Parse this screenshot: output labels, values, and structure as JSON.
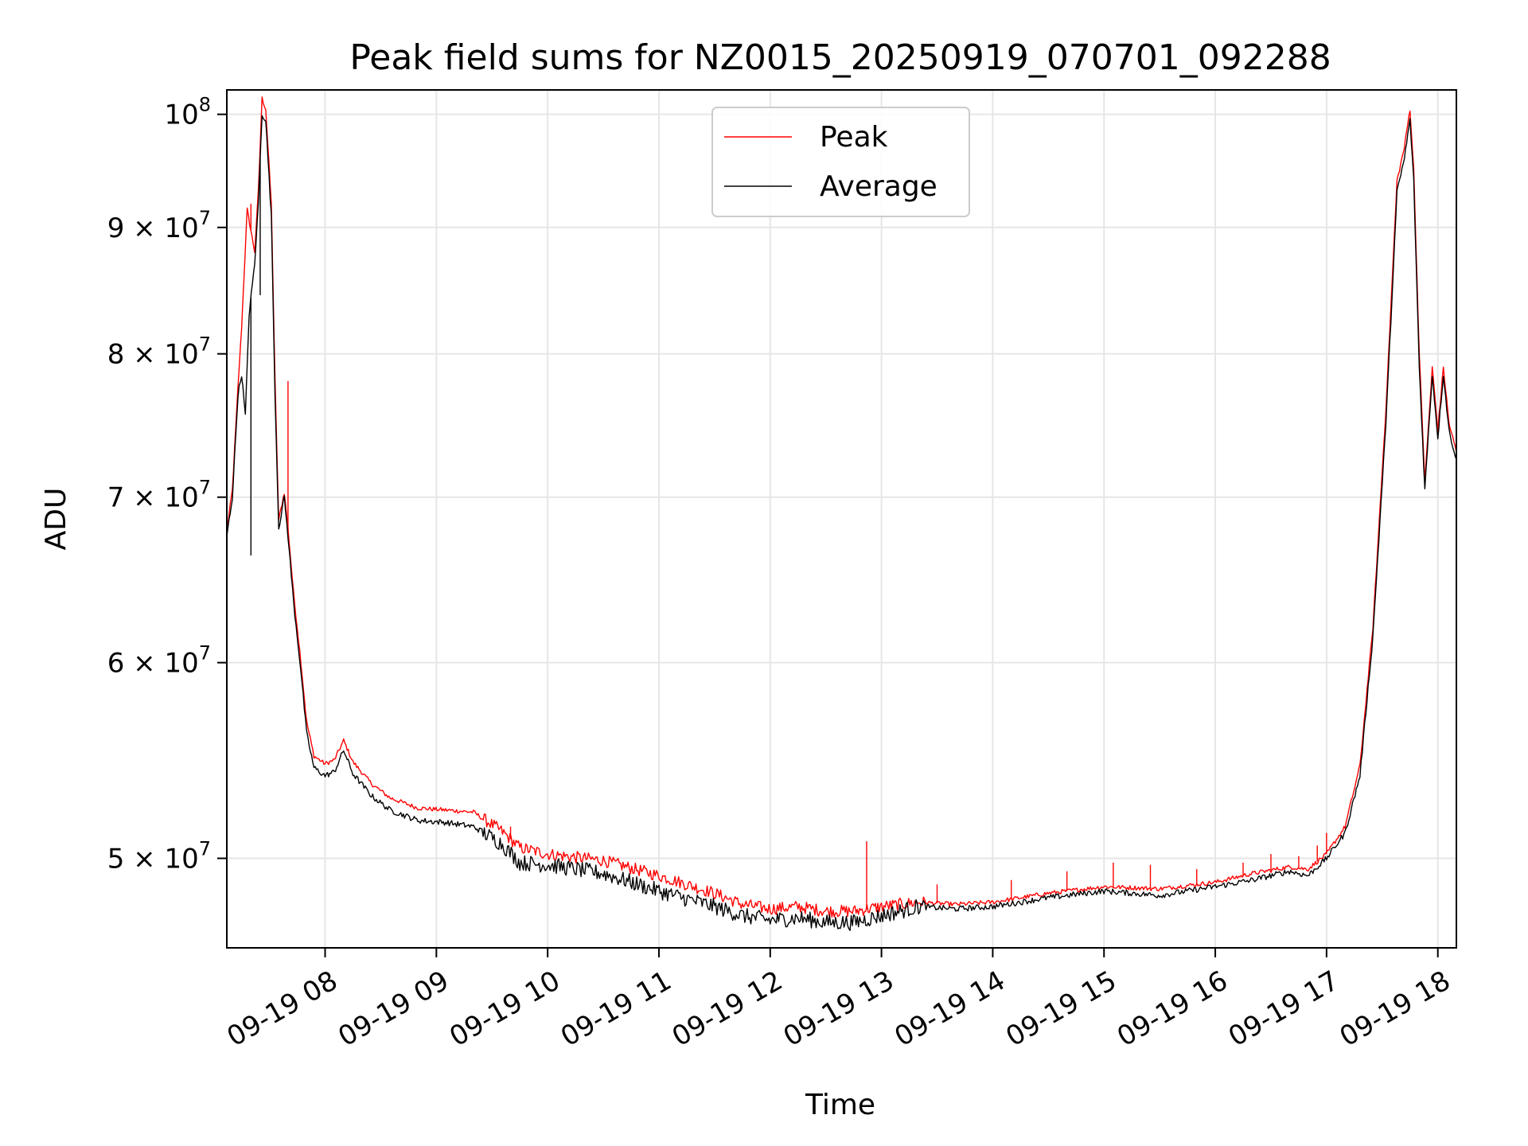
{
  "chart_data": {
    "type": "line",
    "title": "Peak field sums for NZ0015_20250919_070701_092288",
    "xlabel": "Time",
    "ylabel": "ADU",
    "y_scale": "log",
    "ylim": [
      46000000,
      102300000
    ],
    "xlim": [
      "2025-09-19 07:07",
      "2025-09-19 18:10"
    ],
    "x_ticks": [
      {
        "value": "2025-09-19 08:00",
        "label": "09-19 08"
      },
      {
        "value": "2025-09-19 09:00",
        "label": "09-19 09"
      },
      {
        "value": "2025-09-19 10:00",
        "label": "09-19 10"
      },
      {
        "value": "2025-09-19 11:00",
        "label": "09-19 11"
      },
      {
        "value": "2025-09-19 12:00",
        "label": "09-19 12"
      },
      {
        "value": "2025-09-19 13:00",
        "label": "09-19 13"
      },
      {
        "value": "2025-09-19 14:00",
        "label": "09-19 14"
      },
      {
        "value": "2025-09-19 15:00",
        "label": "09-19 15"
      },
      {
        "value": "2025-09-19 16:00",
        "label": "09-19 16"
      },
      {
        "value": "2025-09-19 17:00",
        "label": "09-19 17"
      },
      {
        "value": "2025-09-19 18:00",
        "label": "09-19 18"
      }
    ],
    "y_ticks": [
      {
        "value": 100000000,
        "base": "10",
        "exp": "8"
      },
      {
        "value": 90000000,
        "base": "9 × 10",
        "exp": "7"
      },
      {
        "value": 80000000,
        "base": "8 × 10",
        "exp": "7"
      },
      {
        "value": 70000000,
        "base": "7 × 10",
        "exp": "7"
      },
      {
        "value": 60000000,
        "base": "6 × 10",
        "exp": "7"
      },
      {
        "value": 50000000,
        "base": "5 × 10",
        "exp": "7"
      }
    ],
    "grid": true,
    "legend": {
      "placement": "top-center"
    },
    "series": [
      {
        "name": "Peak",
        "color": "#ff0000",
        "points": [
          [
            "2025-09-19 07:07",
            67800000
          ],
          [
            "2025-09-19 07:10",
            70500000
          ],
          [
            "2025-09-19 07:13",
            77500000
          ],
          [
            "2025-09-19 07:15",
            82000000
          ],
          [
            "2025-09-19 07:18",
            91500000
          ],
          [
            "2025-09-19 07:22",
            88000000
          ],
          [
            "2025-09-19 07:24",
            93000000
          ],
          [
            "2025-09-19 07:26",
            101500000
          ],
          [
            "2025-09-19 07:28",
            100500000
          ],
          [
            "2025-09-19 07:31",
            92000000
          ],
          [
            "2025-09-19 07:33",
            78000000
          ],
          [
            "2025-09-19 07:35",
            68500000
          ],
          [
            "2025-09-19 07:38",
            70300000
          ],
          [
            "2025-09-19 07:40",
            68000000
          ],
          [
            "2025-09-19 07:43",
            64000000
          ],
          [
            "2025-09-19 07:47",
            60000000
          ],
          [
            "2025-09-19 07:50",
            56800000
          ],
          [
            "2025-09-19 07:54",
            55000000
          ],
          [
            "2025-09-19 08:00",
            54600000
          ],
          [
            "2025-09-19 08:05",
            54800000
          ],
          [
            "2025-09-19 08:10",
            55800000
          ],
          [
            "2025-09-19 08:15",
            54700000
          ],
          [
            "2025-09-19 08:25",
            53600000
          ],
          [
            "2025-09-19 08:35",
            52900000
          ],
          [
            "2025-09-19 08:50",
            52400000
          ],
          [
            "2025-09-19 09:05",
            52300000
          ],
          [
            "2025-09-19 09:20",
            52200000
          ],
          [
            "2025-09-19 09:35",
            51300000
          ],
          [
            "2025-09-19 09:45",
            50500000
          ],
          [
            "2025-09-19 10:00",
            50200000
          ],
          [
            "2025-09-19 10:30",
            49900000
          ],
          [
            "2025-09-19 11:00",
            49200000
          ],
          [
            "2025-09-19 11:30",
            48400000
          ],
          [
            "2025-09-19 11:45",
            47900000
          ],
          [
            "2025-09-19 12:00",
            47700000
          ],
          [
            "2025-09-19 12:15",
            47800000
          ],
          [
            "2025-09-19 12:30",
            47600000
          ],
          [
            "2025-09-19 12:45",
            47600000
          ],
          [
            "2025-09-19 13:00",
            47800000
          ],
          [
            "2025-09-19 13:20",
            48000000
          ],
          [
            "2025-09-19 13:40",
            47900000
          ],
          [
            "2025-09-19 14:00",
            48000000
          ],
          [
            "2025-09-19 14:30",
            48400000
          ],
          [
            "2025-09-19 15:00",
            48700000
          ],
          [
            "2025-09-19 15:30",
            48600000
          ],
          [
            "2025-09-19 16:00",
            48900000
          ],
          [
            "2025-09-19 16:20",
            49300000
          ],
          [
            "2025-09-19 16:40",
            49600000
          ],
          [
            "2025-09-19 16:50",
            49500000
          ],
          [
            "2025-09-19 17:00",
            50200000
          ],
          [
            "2025-09-19 17:10",
            51500000
          ],
          [
            "2025-09-19 17:18",
            54500000
          ],
          [
            "2025-09-19 17:25",
            62000000
          ],
          [
            "2025-09-19 17:32",
            76000000
          ],
          [
            "2025-09-19 17:38",
            94000000
          ],
          [
            "2025-09-19 17:42",
            97000000
          ],
          [
            "2025-09-19 17:45",
            100500000
          ],
          [
            "2025-09-19 17:47",
            95000000
          ],
          [
            "2025-09-19 17:50",
            80000000
          ],
          [
            "2025-09-19 17:53",
            71000000
          ],
          [
            "2025-09-19 17:57",
            79000000
          ],
          [
            "2025-09-19 18:00",
            74500000
          ],
          [
            "2025-09-19 18:03",
            79000000
          ],
          [
            "2025-09-19 18:06",
            75000000
          ],
          [
            "2025-09-19 18:10",
            73000000
          ]
        ],
        "spikes": [
          [
            "2025-09-19 07:18",
            91500000
          ],
          [
            "2025-09-19 07:20",
            92000000
          ],
          [
            "2025-09-19 07:40",
            78000000
          ],
          [
            "2025-09-19 09:40",
            51500000
          ],
          [
            "2025-09-19 12:52",
            50800000
          ],
          [
            "2025-09-19 13:30",
            48800000
          ],
          [
            "2025-09-19 14:10",
            49000000
          ],
          [
            "2025-09-19 14:40",
            49400000
          ],
          [
            "2025-09-19 15:05",
            49800000
          ],
          [
            "2025-09-19 15:25",
            49700000
          ],
          [
            "2025-09-19 15:50",
            49500000
          ],
          [
            "2025-09-19 16:15",
            49800000
          ],
          [
            "2025-09-19 16:30",
            50200000
          ],
          [
            "2025-09-19 16:45",
            50100000
          ],
          [
            "2025-09-19 16:55",
            50600000
          ],
          [
            "2025-09-19 17:00",
            51200000
          ]
        ]
      },
      {
        "name": "Average",
        "color": "#000000",
        "points": [
          [
            "2025-09-19 07:07",
            67500000
          ],
          [
            "2025-09-19 07:10",
            70000000
          ],
          [
            "2025-09-19 07:13",
            77000000
          ],
          [
            "2025-09-19 07:15",
            78500000
          ],
          [
            "2025-09-19 07:17",
            75500000
          ],
          [
            "2025-09-19 07:19",
            83000000
          ],
          [
            "2025-09-19 07:22",
            87000000
          ],
          [
            "2025-09-19 07:24",
            92000000
          ],
          [
            "2025-09-19 07:26",
            100000000
          ],
          [
            "2025-09-19 07:28",
            99500000
          ],
          [
            "2025-09-19 07:31",
            91000000
          ],
          [
            "2025-09-19 07:33",
            77000000
          ],
          [
            "2025-09-19 07:35",
            68000000
          ],
          [
            "2025-09-19 07:38",
            70000000
          ],
          [
            "2025-09-19 07:40",
            67500000
          ],
          [
            "2025-09-19 07:43",
            63500000
          ],
          [
            "2025-09-19 07:47",
            59500000
          ],
          [
            "2025-09-19 07:50",
            56200000
          ],
          [
            "2025-09-19 07:54",
            54400000
          ],
          [
            "2025-09-19 08:00",
            54000000
          ],
          [
            "2025-09-19 08:05",
            54200000
          ],
          [
            "2025-09-19 08:10",
            55300000
          ],
          [
            "2025-09-19 08:15",
            54100000
          ],
          [
            "2025-09-19 08:25",
            53000000
          ],
          [
            "2025-09-19 08:35",
            52300000
          ],
          [
            "2025-09-19 08:50",
            51800000
          ],
          [
            "2025-09-19 09:05",
            51700000
          ],
          [
            "2025-09-19 09:20",
            51500000
          ],
          [
            "2025-09-19 09:35",
            50700000
          ],
          [
            "2025-09-19 09:45",
            49800000
          ],
          [
            "2025-09-19 10:00",
            49700000
          ],
          [
            "2025-09-19 10:30",
            49300000
          ],
          [
            "2025-09-19 11:00",
            48500000
          ],
          [
            "2025-09-19 11:30",
            47800000
          ],
          [
            "2025-09-19 11:45",
            47400000
          ],
          [
            "2025-09-19 12:00",
            47200000
          ],
          [
            "2025-09-19 12:15",
            47300000
          ],
          [
            "2025-09-19 12:30",
            47100000
          ],
          [
            "2025-09-19 12:45",
            47100000
          ],
          [
            "2025-09-19 13:00",
            47400000
          ],
          [
            "2025-09-19 13:20",
            47800000
          ],
          [
            "2025-09-19 13:40",
            47700000
          ],
          [
            "2025-09-19 14:00",
            47800000
          ],
          [
            "2025-09-19 14:30",
            48200000
          ],
          [
            "2025-09-19 15:00",
            48500000
          ],
          [
            "2025-09-19 15:30",
            48300000
          ],
          [
            "2025-09-19 16:00",
            48700000
          ],
          [
            "2025-09-19 16:20",
            49000000
          ],
          [
            "2025-09-19 16:40",
            49400000
          ],
          [
            "2025-09-19 16:50",
            49200000
          ],
          [
            "2025-09-19 17:00",
            50000000
          ],
          [
            "2025-09-19 17:10",
            51200000
          ],
          [
            "2025-09-19 17:18",
            54000000
          ],
          [
            "2025-09-19 17:25",
            61500000
          ],
          [
            "2025-09-19 17:32",
            75000000
          ],
          [
            "2025-09-19 17:38",
            93000000
          ],
          [
            "2025-09-19 17:42",
            96000000
          ],
          [
            "2025-09-19 17:45",
            99500000
          ],
          [
            "2025-09-19 17:47",
            94000000
          ],
          [
            "2025-09-19 17:50",
            79000000
          ],
          [
            "2025-09-19 17:53",
            70500000
          ],
          [
            "2025-09-19 17:57",
            78500000
          ],
          [
            "2025-09-19 18:00",
            74000000
          ],
          [
            "2025-09-19 18:03",
            78500000
          ],
          [
            "2025-09-19 18:06",
            74500000
          ],
          [
            "2025-09-19 18:10",
            72500000
          ]
        ],
        "spikes": [
          [
            "2025-09-19 07:20",
            66300000
          ],
          [
            "2025-09-19 07:25",
            84500000
          ]
        ]
      }
    ]
  }
}
